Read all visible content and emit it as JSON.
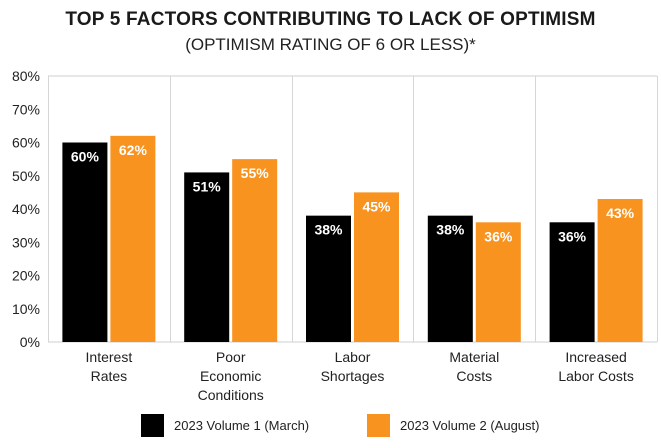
{
  "chart_data": {
    "type": "bar",
    "title": "TOP 5 FACTORS CONTRIBUTING TO LACK OF OPTIMISM",
    "subtitle": "(OPTIMISM RATING OF 6 OR LESS)*",
    "categories": [
      [
        "Interest",
        "Rates"
      ],
      [
        "Poor",
        "Economic",
        "Conditions"
      ],
      [
        "Labor",
        "Shortages"
      ],
      [
        "Material",
        "Costs"
      ],
      [
        "Increased",
        "Labor Costs"
      ]
    ],
    "series": [
      {
        "name": "2023 Volume 1 (March)",
        "values": [
          60,
          51,
          38,
          38,
          36
        ],
        "labels": [
          "60%",
          "51%",
          "38%",
          "38%",
          "36%"
        ],
        "color": "#000000"
      },
      {
        "name": "2023 Volume 2 (August)",
        "values": [
          62,
          55,
          45,
          36,
          43
        ],
        "labels": [
          "62%",
          "55%",
          "45%",
          "36%",
          "43%"
        ],
        "color": "#F7931E"
      }
    ],
    "ylim": [
      0,
      80
    ],
    "yticks": [
      "0%",
      "10%",
      "20%",
      "30%",
      "40%",
      "50%",
      "60%",
      "70%",
      "80%"
    ],
    "ytick_values": [
      0,
      10,
      20,
      30,
      40,
      50,
      60,
      70,
      80
    ],
    "grid": "vertical separators between categories",
    "legend_position": "bottom"
  }
}
